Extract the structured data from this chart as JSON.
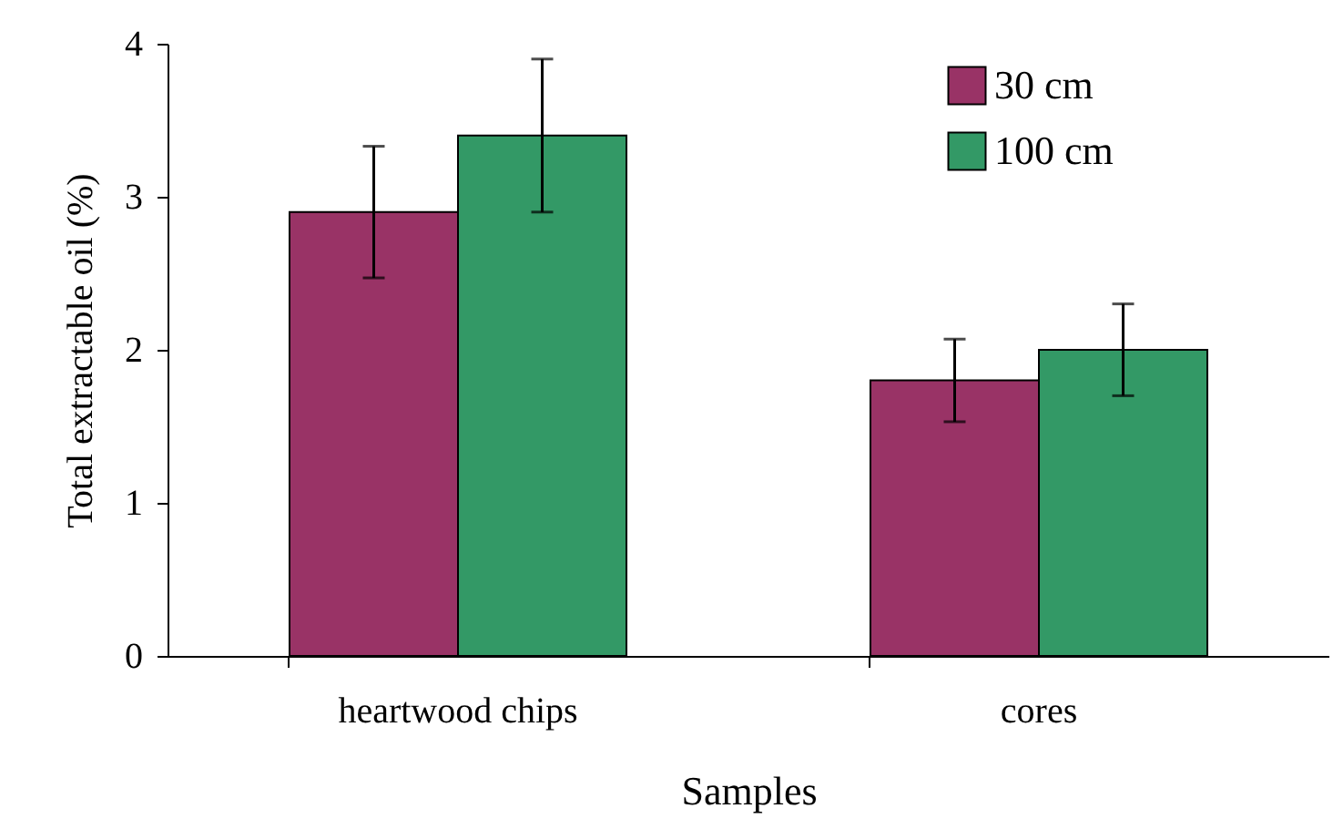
{
  "chart_data": {
    "type": "bar",
    "xlabel": "Samples",
    "ylabel": "Total extractable oil (%)",
    "categories": [
      "heartwood chips",
      "cores"
    ],
    "series": [
      {
        "name": "30 cm",
        "color": "#993366",
        "values": [
          2.9,
          1.8
        ],
        "errors": [
          0.43,
          0.27
        ]
      },
      {
        "name": "100 cm",
        "color": "#339966",
        "values": [
          3.4,
          2.0
        ],
        "errors": [
          0.5,
          0.3
        ]
      }
    ],
    "ylim": [
      0,
      4
    ],
    "yticks": [
      0,
      1,
      2,
      3,
      4
    ],
    "grid": false,
    "legend": "top right"
  }
}
